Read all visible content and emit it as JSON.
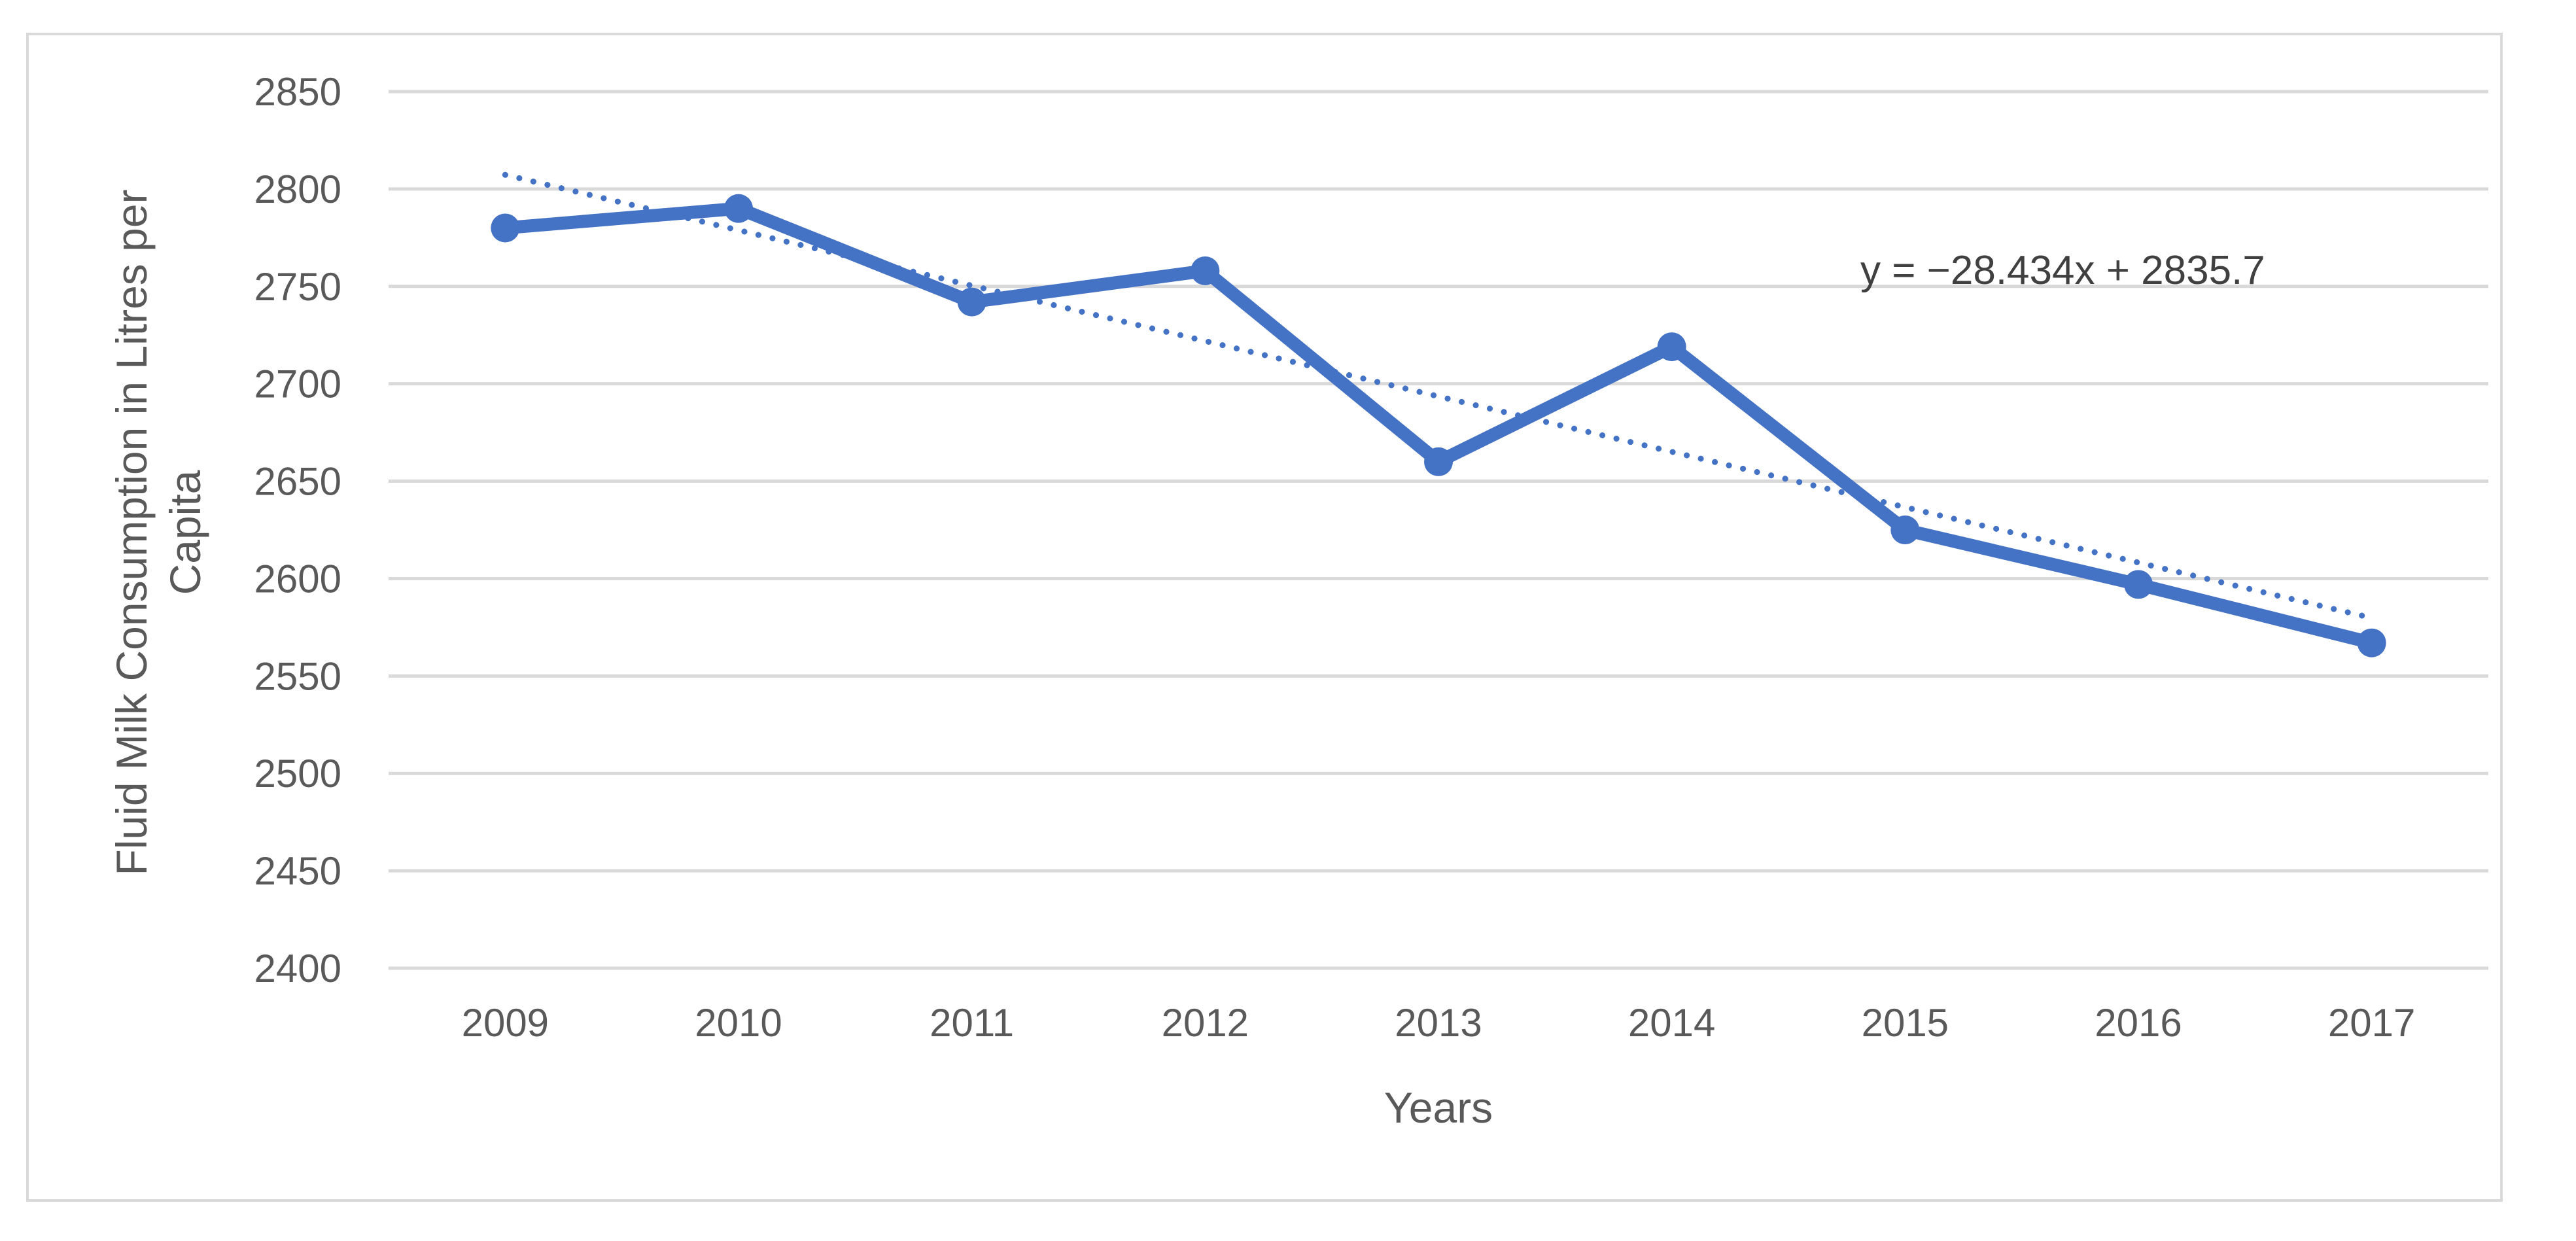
{
  "chart_data": {
    "type": "line",
    "title": "",
    "xlabel": "Years",
    "ylabel_lines": [
      "Fluid Milk Consumption in Litres per",
      "Capita"
    ],
    "categories": [
      "2009",
      "2010",
      "2011",
      "2012",
      "2013",
      "2014",
      "2015",
      "2016",
      "2017"
    ],
    "series": [
      {
        "values": [
          2780,
          2790,
          2742,
          2758,
          2660,
          2719,
          2625,
          2597,
          2567
        ],
        "color": "#4472c4",
        "marker": "circle"
      }
    ],
    "trendline": {
      "type": "linear",
      "slope": -28.434,
      "intercept": 2835.7,
      "style": "dotted",
      "color": "#4472c4",
      "equation_label": "y = −28.434x + 2835.7"
    },
    "ylim": [
      2400,
      2850
    ],
    "yticks": [
      2400,
      2450,
      2500,
      2550,
      2600,
      2650,
      2700,
      2750,
      2800,
      2850
    ],
    "grid": "horizontal",
    "legend": "none"
  }
}
